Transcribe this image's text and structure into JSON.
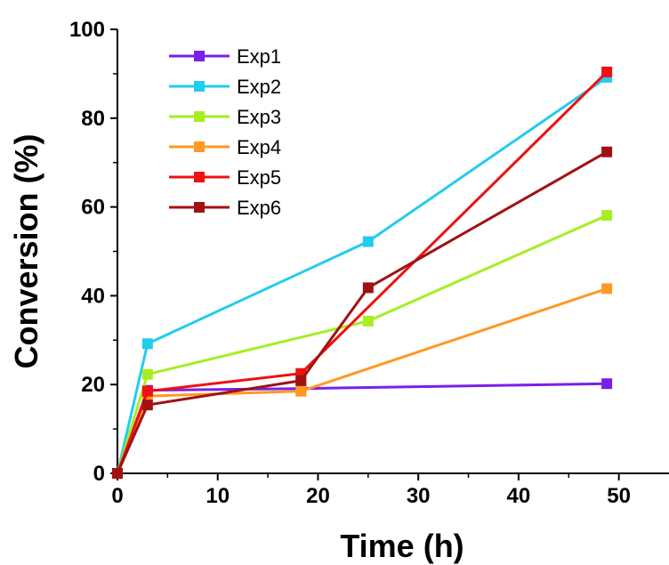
{
  "chart_data": {
    "type": "line",
    "xlabel": "Time (h)",
    "ylabel": "Conversion (%)",
    "xlim": [
      0,
      55
    ],
    "ylim": [
      0,
      100
    ],
    "xticks": [
      "0",
      "10",
      "20",
      "30",
      "40",
      "50"
    ],
    "yticks": [
      "0",
      "20",
      "40",
      "60",
      "80",
      "100"
    ],
    "grid": false,
    "legend_position": "top-left",
    "series": [
      {
        "name": "Exp1",
        "color": "#7B1FE8",
        "x": [
          0,
          3,
          18.3,
          48.8
        ],
        "y": [
          0,
          18.7,
          19.1,
          20.2
        ]
      },
      {
        "name": "Exp2",
        "color": "#22CCEE",
        "x": [
          0,
          3,
          25,
          48.8
        ],
        "y": [
          0,
          29.2,
          52.2,
          89.2
        ]
      },
      {
        "name": "Exp3",
        "color": "#A6EE22",
        "x": [
          0,
          3,
          25,
          48.8
        ],
        "y": [
          0,
          22.3,
          34.3,
          58.1
        ]
      },
      {
        "name": "Exp4",
        "color": "#FF9922",
        "x": [
          0,
          3,
          18.3,
          48.8
        ],
        "y": [
          0,
          17.4,
          18.5,
          41.6
        ]
      },
      {
        "name": "Exp5",
        "color": "#EE1111",
        "x": [
          0,
          3,
          18.3,
          48.8
        ],
        "y": [
          0,
          18.5,
          22.5,
          90.4
        ]
      },
      {
        "name": "Exp6",
        "color": "#A01212",
        "x": [
          0,
          3,
          18.3,
          25,
          48.8
        ],
        "y": [
          0,
          15.4,
          20.9,
          41.8,
          72.4
        ]
      }
    ]
  }
}
